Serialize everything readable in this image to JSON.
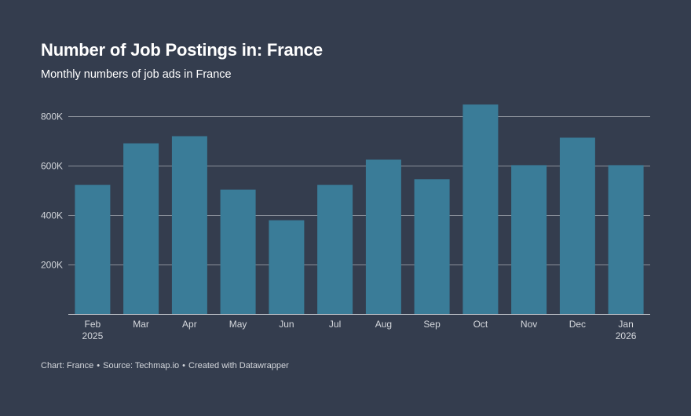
{
  "header": {
    "title": "Number of Job Postings in: France",
    "subtitle": "Monthly numbers of job ads in France"
  },
  "footer": {
    "chart_label": "Chart: France",
    "source_label": "Source: Techmap.io",
    "credit_label": "Created with Datawrapper",
    "separator": "•"
  },
  "colors": {
    "background": "#343d4e",
    "bar": "#3a7c98",
    "gridline": "#8a909a",
    "axis": "#c7cad0",
    "tick_label": "#d4d7dc"
  },
  "chart_data": {
    "type": "bar",
    "title": "Number of Job Postings in: France",
    "subtitle": "Monthly numbers of job ads in France",
    "xlabel": "",
    "ylabel": "",
    "categories": [
      "Feb",
      "Mar",
      "Apr",
      "May",
      "Jun",
      "Jul",
      "Aug",
      "Sep",
      "Oct",
      "Nov",
      "Dec",
      "Jan"
    ],
    "category_sublabels": [
      "2025",
      "",
      "",
      "",
      "",
      "",
      "",
      "",
      "",
      "",
      "",
      "2026"
    ],
    "values": [
      522000,
      690000,
      719000,
      503000,
      379000,
      522000,
      624000,
      545000,
      847000,
      602000,
      713000,
      602000
    ],
    "ylim": [
      0,
      800000
    ],
    "yticks": [
      200000,
      400000,
      600000,
      800000
    ],
    "ytick_labels": [
      "200K",
      "400K",
      "600K",
      "800K"
    ],
    "grid": true,
    "legend": "none"
  }
}
